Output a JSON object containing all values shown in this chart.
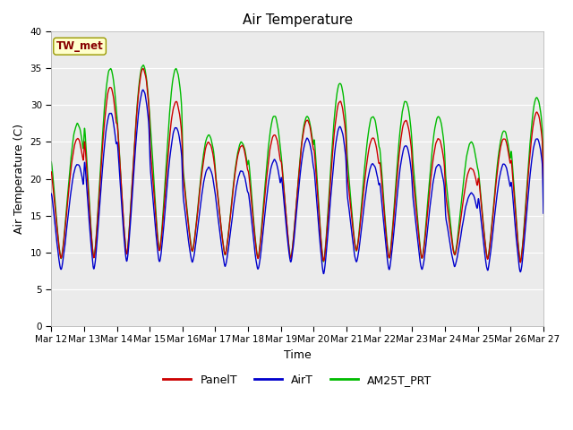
{
  "title": "Air Temperature",
  "xlabel": "Time",
  "ylabel": "Air Temperature (C)",
  "ylim": [
    0,
    40
  ],
  "yticks": [
    0,
    5,
    10,
    15,
    20,
    25,
    30,
    35,
    40
  ],
  "n_days": 15,
  "x_tick_labels": [
    "Mar 12",
    "Mar 13",
    "Mar 14",
    "Mar 15",
    "Mar 16",
    "Mar 17",
    "Mar 18",
    "Mar 19",
    "Mar 20",
    "Mar 21",
    "Mar 22",
    "Mar 23",
    "Mar 24",
    "Mar 25",
    "Mar 26",
    "Mar 27"
  ],
  "series_colors": {
    "PanelT": "#cc0000",
    "AirT": "#0000cc",
    "AM25T_PRT": "#00bb00"
  },
  "background_color": "#e8e8e8",
  "plot_bg": "#ebebeb",
  "annotation_text": "TW_met",
  "annotation_bg": "#ffffcc",
  "annotation_border": "#999900",
  "annotation_text_color": "#880000",
  "line_width": 1.0,
  "daily_peaks_panel": [
    25.5,
    32.5,
    35.0,
    30.5,
    25.0,
    24.5,
    26.0,
    28.0,
    30.5,
    25.5,
    28.0,
    25.5,
    21.5,
    25.5,
    29.0
  ],
  "daily_peaks_green_offset": [
    2.0,
    2.5,
    0.5,
    4.5,
    1.0,
    0.5,
    2.5,
    0.5,
    2.5,
    3.0,
    2.5,
    3.0,
    3.5,
    1.0,
    2.0
  ],
  "daily_mins": [
    9.0,
    9.0,
    9.5,
    10.0,
    10.0,
    9.5,
    9.0,
    9.0,
    8.5,
    10.0,
    9.0,
    9.0,
    9.5,
    9.0,
    8.5
  ],
  "daily_mins_blue_offset": [
    -1.5,
    -1.5,
    -1.0,
    -1.5,
    -1.5,
    -1.5,
    -1.5,
    -0.5,
    -1.5,
    -1.5,
    -1.5,
    -1.5,
    -1.5,
    -1.5,
    -1.5
  ]
}
